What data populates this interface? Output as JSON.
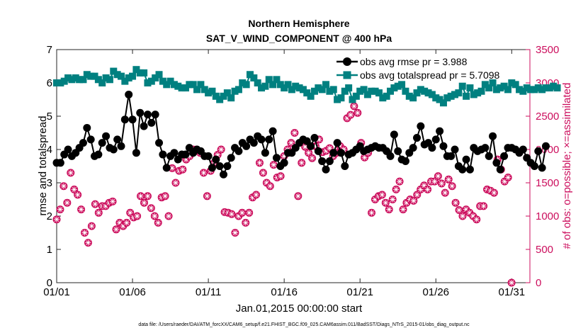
{
  "chart_data": {
    "type": "line",
    "title": "Northern Hemisphere",
    "subtitle": "SAT_V_WIND_COMPONENT @ 400 hPa",
    "xlabel": "Jan.01,2015 00:00:00 start",
    "ylabel_left": "rmse and totalspread",
    "ylabel_right": "# of obs: o=possible; ×=assimilated",
    "x_tick_labels": [
      "01/01",
      "01/06",
      "01/11",
      "01/16",
      "01/21",
      "01/26",
      "01/31"
    ],
    "x_tick_days": [
      0,
      5,
      10,
      15,
      20,
      25,
      30
    ],
    "xlim": [
      0,
      31.2
    ],
    "ylim_left": [
      0,
      7
    ],
    "yticks_left": [
      "0",
      "1",
      "2",
      "3",
      "4",
      "5",
      "6",
      "7"
    ],
    "ylim_right": [
      0,
      3500
    ],
    "yticks_right": [
      "0",
      "500",
      "1000",
      "1500",
      "2000",
      "2500",
      "3000",
      "3500"
    ],
    "footnote": "data file: /Users/raeder/DAI/ATM_forcXX/CAM6_setup/f.e21.FHIST_BGC.f09_025.CAM6assim.011/BadSST/Diags_NTrS_2015-01/obs_diag_output.nc",
    "colors": {
      "rmse": "#000000",
      "spread": "#008080",
      "obs": "#cc0e5d",
      "axis": "#000000"
    },
    "series": [
      {
        "name": "obs avg rmse pr = 3.988",
        "axis": "left",
        "values": [
          3.6,
          3.6,
          3.85,
          4.0,
          3.8,
          3.9,
          4.05,
          4.2,
          4.65,
          4.3,
          3.8,
          3.85,
          4.2,
          4.4,
          4.05,
          4.0,
          4.3,
          4.1,
          4.9,
          5.65,
          4.9,
          3.9,
          5.1,
          4.7,
          5.05,
          4.8,
          5.05,
          4.2,
          3.85,
          3.45,
          3.8,
          3.9,
          3.7,
          3.85,
          3.85,
          4.05,
          3.9,
          4.0,
          3.95,
          3.8,
          3.8,
          3.45,
          3.7,
          3.5,
          3.25,
          3.5,
          3.75,
          4.05,
          3.95,
          4.2,
          4.1,
          4.3,
          4.2,
          4.4,
          4.3,
          3.9,
          4.3,
          4.55,
          3.75,
          3.5,
          3.6,
          3.9,
          3.9,
          4.05,
          4.2,
          4.3,
          4.25,
          4.1,
          4.35,
          3.95,
          3.65,
          3.4,
          3.65,
          3.9,
          4.2,
          3.9,
          3.5,
          3.85,
          3.9,
          4.0,
          4.1,
          3.95,
          4.0,
          4.05,
          4.1,
          4.05,
          4.05,
          3.95,
          3.8,
          4.45,
          3.95,
          3.7,
          3.65,
          3.9,
          4.05,
          4.35,
          4.7,
          4.15,
          4.2,
          4.05,
          4.3,
          4.55,
          4.1,
          3.8,
          3.8,
          4.0,
          3.5,
          3.4,
          3.7,
          3.4,
          4.05,
          3.95,
          4.0,
          4.05,
          3.8,
          4.4,
          3.6,
          3.4,
          3.8,
          4.05,
          4.05,
          4.0,
          3.9,
          4.0,
          3.75,
          3.6,
          3.5,
          3.95,
          3.45,
          4.1
        ],
        "start_day": 0.0,
        "step_days": 0.25
      },
      {
        "name": "obs avg totalspread pr = 5.7098",
        "axis": "left",
        "values": [
          6.0,
          6.0,
          6.05,
          6.15,
          6.1,
          6.15,
          6.1,
          6.1,
          6.25,
          6.2,
          6.2,
          6.1,
          6.0,
          6.15,
          6.1,
          6.35,
          6.25,
          6.2,
          6.05,
          6.15,
          6.2,
          6.4,
          6.3,
          6.3,
          6.0,
          6.05,
          6.15,
          6.25,
          6.05,
          5.95,
          6.05,
          5.95,
          5.9,
          5.85,
          5.85,
          5.95,
          5.95,
          5.8,
          5.95,
          5.8,
          5.7,
          5.75,
          5.6,
          5.5,
          5.6,
          5.7,
          5.55,
          5.75,
          5.8,
          6.0,
          5.95,
          6.25,
          6.15,
          6.0,
          5.85,
          5.9,
          6.1,
          5.95,
          6.1,
          5.95,
          5.85,
          5.95,
          5.8,
          5.9,
          5.85,
          5.8,
          5.7,
          5.6,
          5.75,
          5.85,
          5.8,
          5.95,
          5.75,
          5.8,
          5.5,
          5.55,
          5.75,
          5.85,
          5.5,
          5.6,
          5.75,
          5.8,
          5.65,
          5.75,
          5.75,
          5.7,
          5.55,
          5.6,
          5.75,
          5.85,
          5.9,
          5.95,
          5.75,
          5.6,
          5.55,
          5.7,
          5.8,
          5.75,
          5.7,
          5.65,
          5.55,
          5.5,
          5.4,
          5.55,
          5.6,
          5.65,
          5.7,
          5.9,
          5.6,
          5.85,
          5.65,
          5.7,
          5.75,
          5.95,
          5.85,
          6.0,
          5.8,
          5.85,
          5.9,
          5.8,
          6.0,
          5.95,
          5.8,
          5.75,
          5.85,
          5.8,
          5.8,
          5.85,
          5.8,
          5.85,
          5.85,
          5.9,
          5.85
        ],
        "start_day": 0.0,
        "step_days": 0.25
      },
      {
        "name": "# of obs (possible / assimilated)",
        "axis": "right",
        "values": [
          950,
          1100,
          1450,
          1200,
          1650,
          1400,
          1320,
          1100,
          750,
          600,
          850,
          1180,
          1050,
          1150,
          1150,
          1200,
          1220,
          800,
          900,
          850,
          900,
          1050,
          980,
          1000,
          1300,
          1200,
          1300,
          1120,
          1000,
          900,
          1280,
          1300,
          1000,
          1720,
          1500,
          1680,
          1700,
          1850,
          1900,
          2000,
          2000,
          1950,
          1650,
          1300,
          1680,
          1800,
          1920,
          2000,
          1060,
          1050,
          1030,
          750,
          1000,
          1050,
          900,
          1050,
          1280,
          1320,
          1800,
          1650,
          1500,
          1450,
          1770,
          1580,
          1600,
          1900,
          2000,
          2100,
          2250,
          1300,
          1800,
          2040,
          1950,
          1870,
          2050,
          2150,
          1960,
          1980,
          2020,
          1900,
          1950,
          2050,
          2000,
          2470,
          2520,
          2650,
          2550,
          2100,
          1880,
          1950,
          1050,
          1250,
          1300,
          1320,
          1200,
          1100,
          1250,
          1400,
          1520,
          1100,
          1200,
          1250,
          1230,
          1320,
          1400,
          1460,
          1400,
          1520,
          1520,
          1600,
          1490,
          1350,
          1550,
          1450,
          1200,
          1090,
          1000,
          1100,
          1050,
          1000,
          950,
          1150,
          1150,
          1400,
          1380,
          1350,
          1850,
          1700,
          1520,
          1580,
          0
        ],
        "start_day": 0.0,
        "step_days": 0.2307
      }
    ],
    "legend_position": "top-right"
  }
}
